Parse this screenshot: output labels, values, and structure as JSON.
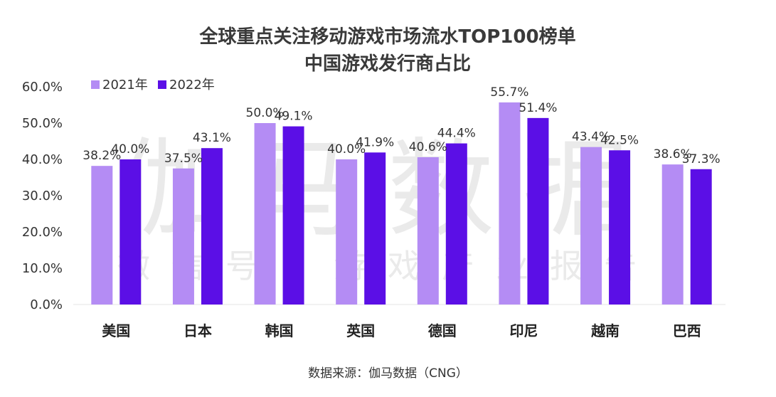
{
  "chart_data": {
    "type": "bar",
    "title_lines": [
      "全球重点关注移动游戏市场流水TOP100榜单",
      "中国游戏发行商占比"
    ],
    "categories": [
      "美国",
      "日本",
      "韩国",
      "英国",
      "德国",
      "印尼",
      "越南",
      "巴西"
    ],
    "series": [
      {
        "name": "2021年",
        "color": "#b48cf4",
        "values": [
          38.2,
          37.5,
          50.0,
          40.0,
          40.6,
          55.7,
          43.4,
          38.6
        ]
      },
      {
        "name": "2022年",
        "color": "#5b0fe6",
        "values": [
          40.0,
          43.1,
          49.1,
          41.9,
          44.4,
          51.4,
          42.5,
          37.3
        ]
      }
    ],
    "ylim": [
      0,
      60
    ],
    "yticks": [
      "0.0%",
      "10.0%",
      "20.0%",
      "30.0%",
      "40.0%",
      "50.0%",
      "60.0%"
    ],
    "value_labels": [
      [
        "38.2%",
        "37.5%",
        "50.0%",
        "40.0%",
        "40.6%",
        "55.7%",
        "43.4%",
        "38.6%"
      ],
      [
        "40.0%",
        "43.1%",
        "49.1%",
        "41.9%",
        "44.4%",
        "51.4%",
        "42.5%",
        "37.3%"
      ]
    ],
    "legend_position": "top-left",
    "grid": false
  },
  "watermark": {
    "main": "伽马数据",
    "sub": "微信号：游戏产业报告"
  },
  "source_text": "数据来源：伽马数据（CNG）"
}
